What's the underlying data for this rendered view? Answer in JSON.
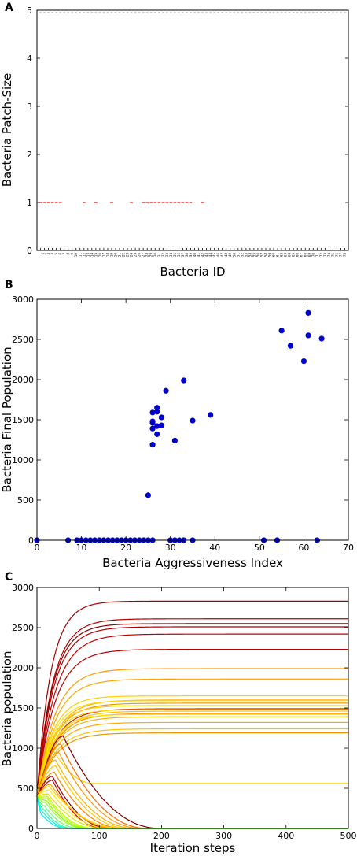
{
  "panels": {
    "a": {
      "letter": "A"
    },
    "b": {
      "letter": "B"
    },
    "c": {
      "letter": "C"
    }
  },
  "chart_data": [
    {
      "type": "scatter",
      "panel": "A",
      "xlabel": "Bacteria ID",
      "ylabel": "Bacteria Patch-Size",
      "ylim": [
        0,
        5
      ],
      "yticks": [
        0,
        1,
        2,
        3,
        4,
        5
      ],
      "xlim": [
        0,
        78
      ],
      "x_tick_labels": [
        "1",
        "2",
        "3",
        "4",
        "5",
        "6",
        "7",
        "8",
        "9",
        "10",
        "11",
        "12",
        "13",
        "14",
        "15",
        "16",
        "17",
        "18",
        "19",
        "20",
        "21",
        "22",
        "23",
        "24",
        "25",
        "26",
        "27",
        "28",
        "29",
        "30",
        "31",
        "32",
        "33",
        "34",
        "35",
        "36",
        "37",
        "38",
        "39",
        "40",
        "41",
        "42",
        "43",
        "44",
        "45",
        "46",
        "47",
        "48",
        "49",
        "50",
        "51",
        "52",
        "53",
        "54",
        "55",
        "56",
        "57",
        "58",
        "59",
        "60",
        "61",
        "62",
        "63",
        "64",
        "65",
        "66",
        "67",
        "68",
        "69",
        "70",
        "71",
        "72",
        "73",
        "74",
        "75",
        "76",
        "77",
        "78"
      ],
      "marker": "red dash",
      "colors": {
        "marker": "#ff0000",
        "top_marker": "#999999"
      },
      "y_eq_1_ids": [
        1,
        2,
        3,
        4,
        5,
        6,
        12,
        15,
        19,
        24,
        27,
        28,
        29,
        30,
        31,
        32,
        33,
        34,
        35,
        36,
        37,
        38,
        39,
        42
      ],
      "ids_top_of_axis": "all",
      "grid": false
    },
    {
      "type": "scatter",
      "panel": "B",
      "xlabel": "Bacteria Aggressiveness Index",
      "ylabel": "Bacteria Final Population",
      "xlim": [
        0,
        70
      ],
      "ylim": [
        0,
        3000
      ],
      "xticks": [
        0,
        10,
        20,
        30,
        40,
        50,
        60,
        70
      ],
      "yticks": [
        0,
        500,
        1000,
        1500,
        2000,
        2500,
        3000
      ],
      "colors": {
        "marker": "#0000cc"
      },
      "grid": false,
      "points": [
        [
          0,
          0
        ],
        [
          7,
          0
        ],
        [
          9,
          0
        ],
        [
          10,
          0
        ],
        [
          11,
          0
        ],
        [
          12,
          0
        ],
        [
          13,
          0
        ],
        [
          14,
          0
        ],
        [
          15,
          0
        ],
        [
          16,
          0
        ],
        [
          17,
          0
        ],
        [
          18,
          0
        ],
        [
          19,
          0
        ],
        [
          20,
          0
        ],
        [
          21,
          0
        ],
        [
          22,
          0
        ],
        [
          23,
          0
        ],
        [
          24,
          0
        ],
        [
          25,
          0
        ],
        [
          26,
          0
        ],
        [
          30,
          0
        ],
        [
          31,
          0
        ],
        [
          32,
          0
        ],
        [
          33,
          0
        ],
        [
          35,
          0
        ],
        [
          51,
          0
        ],
        [
          54,
          0
        ],
        [
          63,
          0
        ],
        [
          25,
          560
        ],
        [
          26,
          1190
        ],
        [
          26,
          1390
        ],
        [
          26,
          1460
        ],
        [
          26,
          1480
        ],
        [
          26,
          1590
        ],
        [
          27,
          1320
        ],
        [
          27,
          1420
        ],
        [
          27,
          1600
        ],
        [
          27,
          1650
        ],
        [
          28,
          1430
        ],
        [
          28,
          1530
        ],
        [
          29,
          1860
        ],
        [
          31,
          1240
        ],
        [
          33,
          1990
        ],
        [
          35,
          1490
        ],
        [
          39,
          1560
        ],
        [
          55,
          2610
        ],
        [
          57,
          2420
        ],
        [
          60,
          2230
        ],
        [
          61,
          2550
        ],
        [
          61,
          2830
        ],
        [
          64,
          2510
        ]
      ]
    },
    {
      "type": "line",
      "panel": "C",
      "xlabel": "Iteration steps",
      "ylabel": "Bacteria population",
      "xlim": [
        0,
        500
      ],
      "ylim": [
        0,
        3000
      ],
      "xticks": [
        0,
        100,
        200,
        300,
        400,
        500
      ],
      "yticks": [
        0,
        500,
        1000,
        1500,
        2000,
        2500,
        3000
      ],
      "grid": false,
      "legend": "none",
      "series": [
        {
          "final": 2830,
          "rate": 0.045,
          "color": "#a50000",
          "shape": "grow"
        },
        {
          "final": 2610,
          "rate": 0.04,
          "color": "#b20000",
          "shape": "grow"
        },
        {
          "final": 2550,
          "rate": 0.04,
          "color": "#8b0000",
          "shape": "grow"
        },
        {
          "final": 2510,
          "rate": 0.038,
          "color": "#b00000",
          "shape": "grow"
        },
        {
          "final": 2420,
          "rate": 0.035,
          "color": "#c00000",
          "shape": "grow"
        },
        {
          "final": 2230,
          "rate": 0.035,
          "color": "#b80000",
          "shape": "grow"
        },
        {
          "final": 1990,
          "rate": 0.035,
          "color": "#ff9900",
          "shape": "grow"
        },
        {
          "final": 1860,
          "rate": 0.035,
          "color": "#ffa500",
          "shape": "grow"
        },
        {
          "final": 1650,
          "rate": 0.04,
          "color": "#ffd000",
          "shape": "grow"
        },
        {
          "final": 1600,
          "rate": 0.035,
          "color": "#ffb300",
          "shape": "grow"
        },
        {
          "final": 1590,
          "rate": 0.04,
          "color": "#ffe000",
          "shape": "grow"
        },
        {
          "final": 1560,
          "rate": 0.035,
          "color": "#e8a000",
          "shape": "grow"
        },
        {
          "final": 1530,
          "rate": 0.04,
          "color": "#ffcc00",
          "shape": "grow"
        },
        {
          "final": 1490,
          "rate": 0.035,
          "color": "#cc2200",
          "shape": "grow"
        },
        {
          "final": 1480,
          "rate": 0.04,
          "color": "#ffd700",
          "shape": "grow"
        },
        {
          "final": 1460,
          "rate": 0.035,
          "color": "#ffc000",
          "shape": "grow"
        },
        {
          "final": 1430,
          "rate": 0.035,
          "color": "#ff8c00",
          "shape": "grow"
        },
        {
          "final": 1420,
          "rate": 0.04,
          "color": "#ffdd00",
          "shape": "grow"
        },
        {
          "final": 1390,
          "rate": 0.035,
          "color": "#f4b400",
          "shape": "grow"
        },
        {
          "final": 1320,
          "rate": 0.035,
          "color": "#ffaa00",
          "shape": "grow"
        },
        {
          "final": 1240,
          "rate": 0.035,
          "color": "#f7c600",
          "shape": "grow"
        },
        {
          "final": 1190,
          "rate": 0.035,
          "color": "#e69500",
          "shape": "grow"
        },
        {
          "final": 560,
          "rate": 0.05,
          "color": "#ffd000",
          "shape": "dip",
          "peak": 950,
          "peak_t": 28,
          "dip_t": 90
        },
        {
          "final": 0,
          "color": "#7a0000",
          "shape": "decline",
          "peak": 1150,
          "peak_t": 42,
          "end_t": 200
        },
        {
          "final": 0,
          "color": "#ff6600",
          "shape": "decline",
          "peak": 1050,
          "peak_t": 38,
          "end_t": 180
        },
        {
          "final": 0,
          "color": "#ff9900",
          "shape": "decline",
          "peak": 950,
          "peak_t": 35,
          "end_t": 170
        },
        {
          "final": 0,
          "color": "#ffb000",
          "shape": "decline",
          "peak": 850,
          "peak_t": 30,
          "end_t": 160
        },
        {
          "final": 0,
          "color": "#ffc800",
          "shape": "decline",
          "peak": 780,
          "peak_t": 30,
          "end_t": 150
        },
        {
          "final": 0,
          "color": "#ff7f00",
          "shape": "decline",
          "peak": 700,
          "peak_t": 28,
          "end_t": 140
        },
        {
          "final": 0,
          "color": "#8b0000",
          "shape": "decline",
          "peak": 650,
          "peak_t": 25,
          "end_t": 120
        },
        {
          "final": 0,
          "color": "#cc0000",
          "shape": "decline",
          "peak": 600,
          "peak_t": 25,
          "end_t": 110
        },
        {
          "final": 0,
          "color": "#ff9f00",
          "shape": "decline",
          "peak": 550,
          "peak_t": 22,
          "end_t": 130
        },
        {
          "final": 0,
          "color": "#ffd700",
          "shape": "decline",
          "peak": 520,
          "peak_t": 20,
          "end_t": 140
        },
        {
          "final": 0,
          "color": "#ffe600",
          "shape": "decline",
          "peak": 480,
          "peak_t": 20,
          "end_t": 120
        },
        {
          "final": 0,
          "color": "#e0e000",
          "shape": "decline",
          "peak": 430,
          "peak_t": 18,
          "end_t": 110
        },
        {
          "final": 0,
          "color": "#ccff00",
          "shape": "decline",
          "peak": 380,
          "peak_t": 16,
          "end_t": 90
        },
        {
          "final": 0,
          "color": "#99ff33",
          "shape": "decline",
          "peak": 320,
          "peak_t": 14,
          "end_t": 80
        },
        {
          "final": 0,
          "color": "#66ff66",
          "shape": "decline",
          "peak": 280,
          "peak_t": 12,
          "end_t": 70
        },
        {
          "final": 0,
          "color": "#33ff99",
          "shape": "decline",
          "peak": 240,
          "peak_t": 11,
          "end_t": 60
        },
        {
          "final": 0,
          "color": "#00ffcc",
          "shape": "decline",
          "peak": 200,
          "peak_t": 10,
          "end_t": 55
        },
        {
          "final": 0,
          "color": "#00e5ff",
          "shape": "decline",
          "peak": 160,
          "peak_t": 9,
          "end_t": 50
        },
        {
          "final": 0,
          "color": "#7fff00",
          "shape": "decline",
          "peak": 350,
          "peak_t": 15,
          "end_t": 85
        },
        {
          "final": 0,
          "color": "#b3ff00",
          "shape": "decline",
          "peak": 400,
          "peak_t": 17,
          "end_t": 95
        }
      ]
    }
  ]
}
